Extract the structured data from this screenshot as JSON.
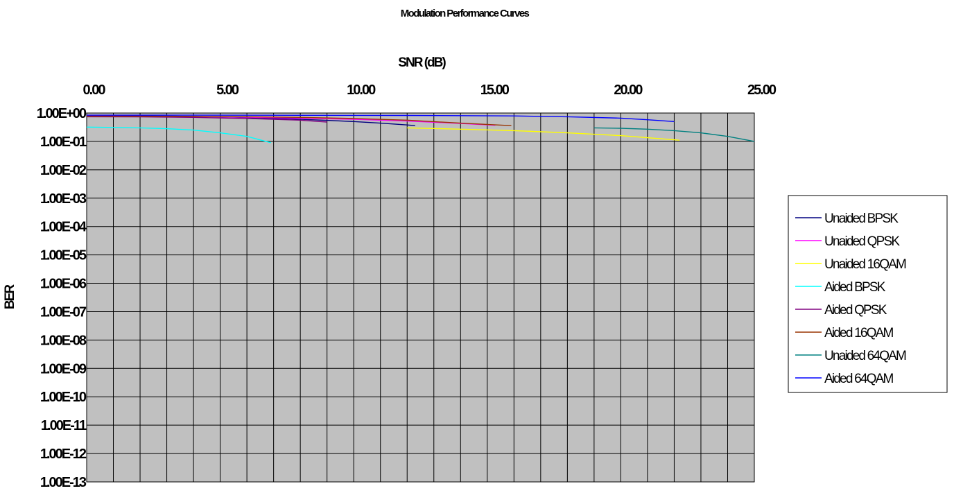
{
  "chart_data": {
    "type": "line",
    "title": "Modulation Performance Curves",
    "xlabel": "SNR (dB)",
    "ylabel": "BER",
    "x_axis_position": "top",
    "xlim": [
      0,
      25
    ],
    "x_ticks": [
      "0.00",
      "5.00",
      "10.00",
      "15.00",
      "20.00",
      "25.00"
    ],
    "x_tick_values": [
      0,
      5,
      10,
      15,
      20,
      25
    ],
    "y_scale": "log",
    "ylim": [
      1e-13,
      1
    ],
    "y_ticks": [
      "1.00E+00",
      "1.00E-01",
      "1.00E-02",
      "1.00E-03",
      "1.00E-04",
      "1.00E-05",
      "1.00E-06",
      "1.00E-07",
      "1.00E-08",
      "1.00E-09",
      "1.00E-10",
      "1.00E-11",
      "1.00E-12",
      "1.00E-13"
    ],
    "y_tick_exponents": [
      0,
      -1,
      -2,
      -3,
      -4,
      -5,
      -6,
      -7,
      -8,
      -9,
      -10,
      -11,
      -12,
      -13
    ],
    "grid": true,
    "plot_background": "#c0c0c0",
    "legend_position": "right",
    "series": [
      {
        "name": "Unaided BPSK",
        "color": "#000080",
        "x": [
          0,
          1,
          2,
          3,
          4,
          5,
          6,
          7,
          8,
          9,
          10,
          11,
          12,
          12.3
        ],
        "y": [
          0.8,
          0.8,
          0.79,
          0.78,
          0.76,
          0.73,
          0.69,
          0.65,
          0.6,
          0.55,
          0.5,
          0.44,
          0.38,
          0.36
        ]
      },
      {
        "name": "Unaided QPSK",
        "color": "#ff00ff",
        "x": [
          0,
          2,
          4,
          6,
          8,
          10,
          12,
          14,
          15.3
        ],
        "y": [
          0.78,
          0.77,
          0.75,
          0.71,
          0.66,
          0.6,
          0.52,
          0.43,
          0.37
        ]
      },
      {
        "name": "Unaided 16QAM",
        "color": "#ffff00",
        "x": [
          12,
          14,
          16,
          18,
          20,
          22.2
        ],
        "y": [
          0.3,
          0.27,
          0.24,
          0.2,
          0.16,
          0.11
        ]
      },
      {
        "name": "Aided BPSK",
        "color": "#00ffff",
        "x": [
          0,
          1,
          2,
          3,
          4,
          5,
          6,
          6.9
        ],
        "y": [
          0.32,
          0.31,
          0.3,
          0.28,
          0.25,
          0.2,
          0.15,
          0.09
        ]
      },
      {
        "name": "Aided QPSK",
        "color": "#800080",
        "x": [
          0,
          2,
          4,
          6,
          8,
          9
        ],
        "y": [
          0.74,
          0.73,
          0.7,
          0.64,
          0.56,
          0.48
        ]
      },
      {
        "name": "Aided 16QAM",
        "color": "#993300",
        "x": [
          0,
          2,
          4,
          6,
          8,
          10,
          12,
          14,
          15.9
        ],
        "y": [
          0.78,
          0.77,
          0.76,
          0.74,
          0.7,
          0.64,
          0.56,
          0.44,
          0.36
        ]
      },
      {
        "name": "Unaided 64QAM",
        "color": "#008080",
        "x": [
          19,
          20,
          21,
          22,
          23,
          24,
          25
        ],
        "y": [
          0.3,
          0.29,
          0.27,
          0.24,
          0.2,
          0.15,
          0.1
        ]
      },
      {
        "name": "Aided 64QAM",
        "color": "#0000ff",
        "x": [
          0,
          4,
          8,
          12,
          16,
          18,
          20,
          21,
          22
        ],
        "y": [
          0.84,
          0.84,
          0.83,
          0.82,
          0.79,
          0.74,
          0.66,
          0.58,
          0.5
        ]
      }
    ]
  }
}
